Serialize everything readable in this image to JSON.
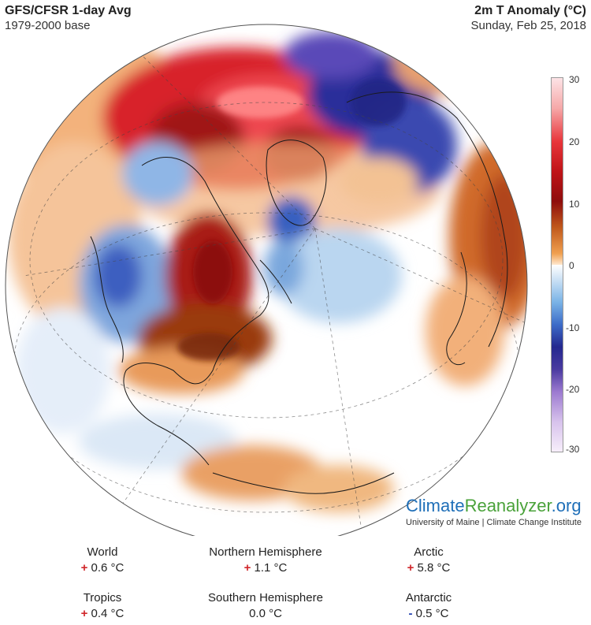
{
  "header": {
    "title": "GFS/CFSR 1-day Avg",
    "subtitle": "1979-2000 base",
    "variable": "2m T Anomaly (°C)",
    "date": "Sunday, Feb 25, 2018"
  },
  "colorbar": {
    "ticks": [
      "30",
      "20",
      "10",
      "0",
      "-10",
      "-20",
      "-30"
    ],
    "tick_values": [
      30,
      20,
      10,
      0,
      -10,
      -20,
      -30
    ],
    "range": [
      -30,
      30
    ],
    "colors": {
      "very_warm": "#fde3e6",
      "warm": "#e8353b",
      "dark_warm": "#8e0d0d",
      "orange": "#f0a050",
      "neutral": "#ffffff",
      "cool": "#7ab3e6",
      "cold": "#24288f",
      "very_cold": "#d7c2ec"
    }
  },
  "map": {
    "projection": "orthographic",
    "view": "northern-hemisphere-atlantic",
    "ocean_color": "#ffffff",
    "graticule": "dashed"
  },
  "brand": {
    "part1": "Climate",
    "part2": "Reanalyzer",
    "part3": ".org",
    "subtitle": "University of Maine | Climate Change Institute"
  },
  "stats": [
    {
      "name": "World",
      "sign": "+",
      "value": "0.6 °C"
    },
    {
      "name": "Northern Hemisphere",
      "sign": "+",
      "value": "1.1 °C"
    },
    {
      "name": "Arctic",
      "sign": "+",
      "value": "5.8 °C"
    },
    {
      "name": "Tropics",
      "sign": "+",
      "value": "0.4 °C"
    },
    {
      "name": "Southern Hemisphere",
      "sign": "",
      "value": "0.0 °C"
    },
    {
      "name": "Antarctic",
      "sign": "-",
      "value": "0.5 °C"
    }
  ]
}
